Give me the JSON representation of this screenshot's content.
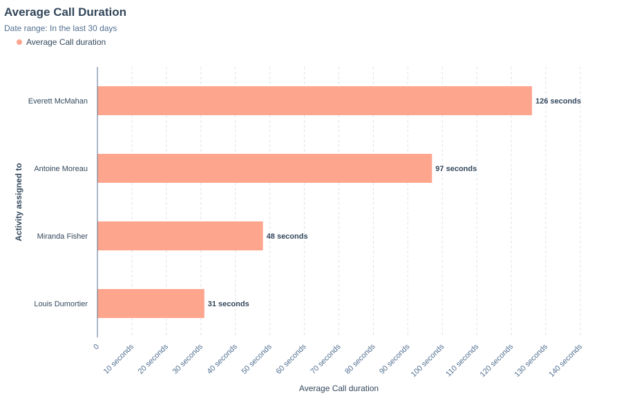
{
  "report": {
    "title": "Average Call Duration",
    "subtitle": "Date range: In the last 30 days"
  },
  "chart_data": {
    "type": "bar",
    "orientation": "horizontal",
    "categories": [
      "Everett McMahan",
      "Antoine Moreau",
      "Miranda Fisher",
      "Louis Dumortier"
    ],
    "series": [
      {
        "name": "Average Call duration",
        "values": [
          126,
          97,
          48,
          31
        ],
        "data_labels": [
          "126 seconds",
          "97 seconds",
          "48 seconds",
          "31 seconds"
        ]
      }
    ],
    "xlabel": "Average Call duration",
    "ylabel": "Activity assigned to",
    "xlim": [
      0,
      140
    ],
    "x_ticks": [
      0,
      10,
      20,
      30,
      40,
      50,
      60,
      70,
      80,
      90,
      100,
      110,
      120,
      130,
      140
    ],
    "x_tick_labels": [
      "0",
      "10 seconds",
      "20 seconds",
      "30 seconds",
      "40 seconds",
      "50 seconds",
      "60 seconds",
      "70 seconds",
      "80 seconds",
      "90 seconds",
      "100 seconds",
      "110 seconds",
      "120 seconds",
      "130 seconds",
      "140 seconds"
    ],
    "grid": true,
    "legend_position": "top-left",
    "colors": {
      "bar": "#fea58e",
      "grid": "#dfe3eb",
      "axis": "#516f90"
    }
  }
}
